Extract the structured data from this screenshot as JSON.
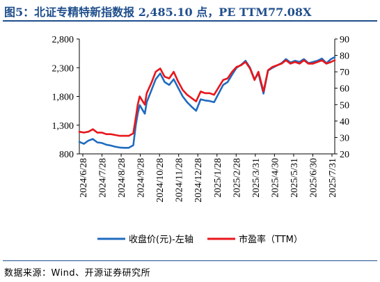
{
  "title": "图5：北证专精特新指数报 2,485.10 点，PE TTM77.08X",
  "source": "数据来源：Wind、开源证券研究所",
  "chart_data": {
    "type": "line",
    "x_labels": [
      "2024/6/28",
      "2024/7/28",
      "2024/8/28",
      "2024/9/28",
      "2024/10/28",
      "2024/11/28",
      "2024/12/28",
      "2025/1/28",
      "2025/2/28",
      "2025/3/31",
      "2025/4/30",
      "2025/5/31",
      "2025/6/30",
      "2025/7/31"
    ],
    "y_left": {
      "ticks": [
        "800",
        "1,300",
        "1,800",
        "2,300",
        "2,800"
      ],
      "range": [
        800,
        2800
      ]
    },
    "y_right": {
      "ticks": [
        "20",
        "30",
        "40",
        "50",
        "60",
        "70",
        "80",
        "90"
      ],
      "range": [
        20,
        90
      ]
    },
    "series": [
      {
        "name": "收盘价(元)-左轴",
        "axis": "left",
        "color": "#1f6bbf",
        "x": [
          "2024-06-28",
          "2024-07-05",
          "2024-07-12",
          "2024-07-19",
          "2024-07-26",
          "2024-08-02",
          "2024-08-09",
          "2024-08-16",
          "2024-08-23",
          "2024-08-30",
          "2024-09-06",
          "2024-09-13",
          "2024-09-20",
          "2024-09-24",
          "2024-09-27",
          "2024-09-30",
          "2024-10-08",
          "2024-10-11",
          "2024-10-18",
          "2024-10-25",
          "2024-11-01",
          "2024-11-08",
          "2024-11-15",
          "2024-11-22",
          "2024-11-29",
          "2024-12-06",
          "2024-12-13",
          "2024-12-20",
          "2024-12-27",
          "2025-01-03",
          "2025-01-10",
          "2025-01-17",
          "2025-01-24",
          "2025-02-07",
          "2025-02-14",
          "2025-02-21",
          "2025-02-28",
          "2025-03-07",
          "2025-03-14",
          "2025-03-21",
          "2025-03-28",
          "2025-04-03",
          "2025-04-11",
          "2025-04-18",
          "2025-04-25",
          "2025-05-09",
          "2025-05-16",
          "2025-05-23",
          "2025-05-30",
          "2025-06-06",
          "2025-06-13",
          "2025-06-20",
          "2025-06-27",
          "2025-07-04",
          "2025-07-11",
          "2025-07-18",
          "2025-07-25",
          "2025-07-31"
        ],
        "values": [
          1010,
          975,
          1030,
          1060,
          1000,
          990,
          960,
          945,
          925,
          910,
          905,
          905,
          950,
          1300,
          1500,
          1650,
          1500,
          1700,
          1900,
          2100,
          2200,
          2050,
          2000,
          2100,
          1950,
          1800,
          1700,
          1620,
          1550,
          1750,
          1730,
          1720,
          1700,
          2000,
          2050,
          2180,
          2300,
          2350,
          2420,
          2300,
          2100,
          2200,
          1850,
          2250,
          2300,
          2380,
          2450,
          2390,
          2420,
          2400,
          2450,
          2380,
          2400,
          2420,
          2460,
          2380,
          2450,
          2485
        ]
      },
      {
        "name": "市盈率（TTM）",
        "axis": "right",
        "color": "#e8161b",
        "x": [
          "2024-06-28",
          "2024-07-05",
          "2024-07-12",
          "2024-07-19",
          "2024-07-26",
          "2024-08-02",
          "2024-08-09",
          "2024-08-16",
          "2024-08-23",
          "2024-08-30",
          "2024-09-06",
          "2024-09-13",
          "2024-09-20",
          "2024-09-24",
          "2024-09-27",
          "2024-09-30",
          "2024-10-08",
          "2024-10-11",
          "2024-10-18",
          "2024-10-25",
          "2024-11-01",
          "2024-11-08",
          "2024-11-15",
          "2024-11-22",
          "2024-11-29",
          "2024-12-06",
          "2024-12-13",
          "2024-12-20",
          "2024-12-27",
          "2025-01-03",
          "2025-01-10",
          "2025-01-17",
          "2025-01-24",
          "2025-02-07",
          "2025-02-14",
          "2025-02-21",
          "2025-02-28",
          "2025-03-07",
          "2025-03-14",
          "2025-03-21",
          "2025-03-28",
          "2025-04-03",
          "2025-04-11",
          "2025-04-18",
          "2025-04-25",
          "2025-05-09",
          "2025-05-16",
          "2025-05-23",
          "2025-05-30",
          "2025-06-06",
          "2025-06-13",
          "2025-06-20",
          "2025-06-27",
          "2025-07-04",
          "2025-07-11",
          "2025-07-18",
          "2025-07-25",
          "2025-07-31"
        ],
        "values": [
          33.5,
          33,
          33.5,
          35,
          33,
          33,
          32,
          32,
          31.5,
          31,
          31,
          31,
          32.5,
          42,
          50,
          55,
          50,
          57,
          63,
          70,
          72,
          67,
          66,
          70,
          64,
          59,
          56,
          54,
          52,
          58,
          57,
          57,
          56,
          65,
          66,
          70,
          73,
          74,
          76,
          72,
          65,
          70,
          58,
          71,
          73,
          75,
          77,
          75,
          76,
          75,
          77,
          75,
          75,
          76,
          77,
          75,
          76,
          77.08
        ]
      }
    ],
    "legend_position": "bottom",
    "grid": false
  }
}
